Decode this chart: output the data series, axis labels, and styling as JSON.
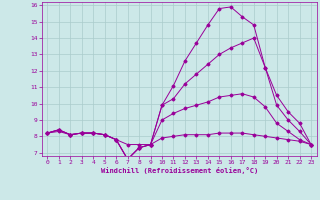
{
  "xlabel": "Windchill (Refroidissement éolien,°C)",
  "ylabel": "",
  "bg_color": "#cce8e8",
  "line_color": "#990099",
  "grid_color": "#aacccc",
  "xlim": [
    -0.5,
    23.5
  ],
  "ylim": [
    6.8,
    16.2
  ],
  "yticks": [
    7,
    8,
    9,
    10,
    11,
    12,
    13,
    14,
    15,
    16
  ],
  "xticks": [
    0,
    1,
    2,
    3,
    4,
    5,
    6,
    7,
    8,
    9,
    10,
    11,
    12,
    13,
    14,
    15,
    16,
    17,
    18,
    19,
    20,
    21,
    22,
    23
  ],
  "line1_x": [
    0,
    1,
    2,
    3,
    4,
    5,
    6,
    7,
    8,
    9,
    10,
    11,
    12,
    13,
    14,
    15,
    16,
    17,
    18,
    19,
    20,
    21,
    22,
    23
  ],
  "line1_y": [
    8.2,
    8.4,
    8.1,
    8.2,
    8.2,
    8.1,
    7.8,
    6.6,
    7.3,
    7.5,
    9.9,
    11.1,
    12.6,
    13.7,
    14.8,
    15.8,
    15.9,
    15.3,
    14.8,
    12.2,
    10.5,
    9.5,
    8.8,
    7.5
  ],
  "line2_x": [
    0,
    1,
    2,
    3,
    4,
    5,
    6,
    7,
    8,
    9,
    10,
    11,
    12,
    13,
    14,
    15,
    16,
    17,
    18,
    19,
    20,
    21,
    22,
    23
  ],
  "line2_y": [
    8.2,
    8.4,
    8.1,
    8.2,
    8.2,
    8.1,
    7.8,
    6.6,
    7.3,
    7.5,
    9.9,
    10.3,
    11.2,
    11.8,
    12.4,
    13.0,
    13.4,
    13.7,
    14.0,
    12.2,
    9.9,
    9.0,
    8.3,
    7.5
  ],
  "line3_x": [
    0,
    1,
    2,
    3,
    4,
    5,
    6,
    7,
    8,
    9,
    10,
    11,
    12,
    13,
    14,
    15,
    16,
    17,
    18,
    19,
    20,
    21,
    22,
    23
  ],
  "line3_y": [
    8.2,
    8.4,
    8.1,
    8.2,
    8.2,
    8.1,
    7.8,
    6.6,
    7.3,
    7.5,
    9.0,
    9.4,
    9.7,
    9.9,
    10.1,
    10.4,
    10.5,
    10.6,
    10.4,
    9.8,
    8.8,
    8.3,
    7.8,
    7.5
  ],
  "line4_x": [
    0,
    1,
    2,
    3,
    4,
    5,
    6,
    7,
    8,
    9,
    10,
    11,
    12,
    13,
    14,
    15,
    16,
    17,
    18,
    19,
    20,
    21,
    22,
    23
  ],
  "line4_y": [
    8.2,
    8.3,
    8.1,
    8.2,
    8.2,
    8.1,
    7.8,
    7.5,
    7.5,
    7.5,
    7.9,
    8.0,
    8.1,
    8.1,
    8.1,
    8.2,
    8.2,
    8.2,
    8.1,
    8.0,
    7.9,
    7.8,
    7.7,
    7.5
  ]
}
